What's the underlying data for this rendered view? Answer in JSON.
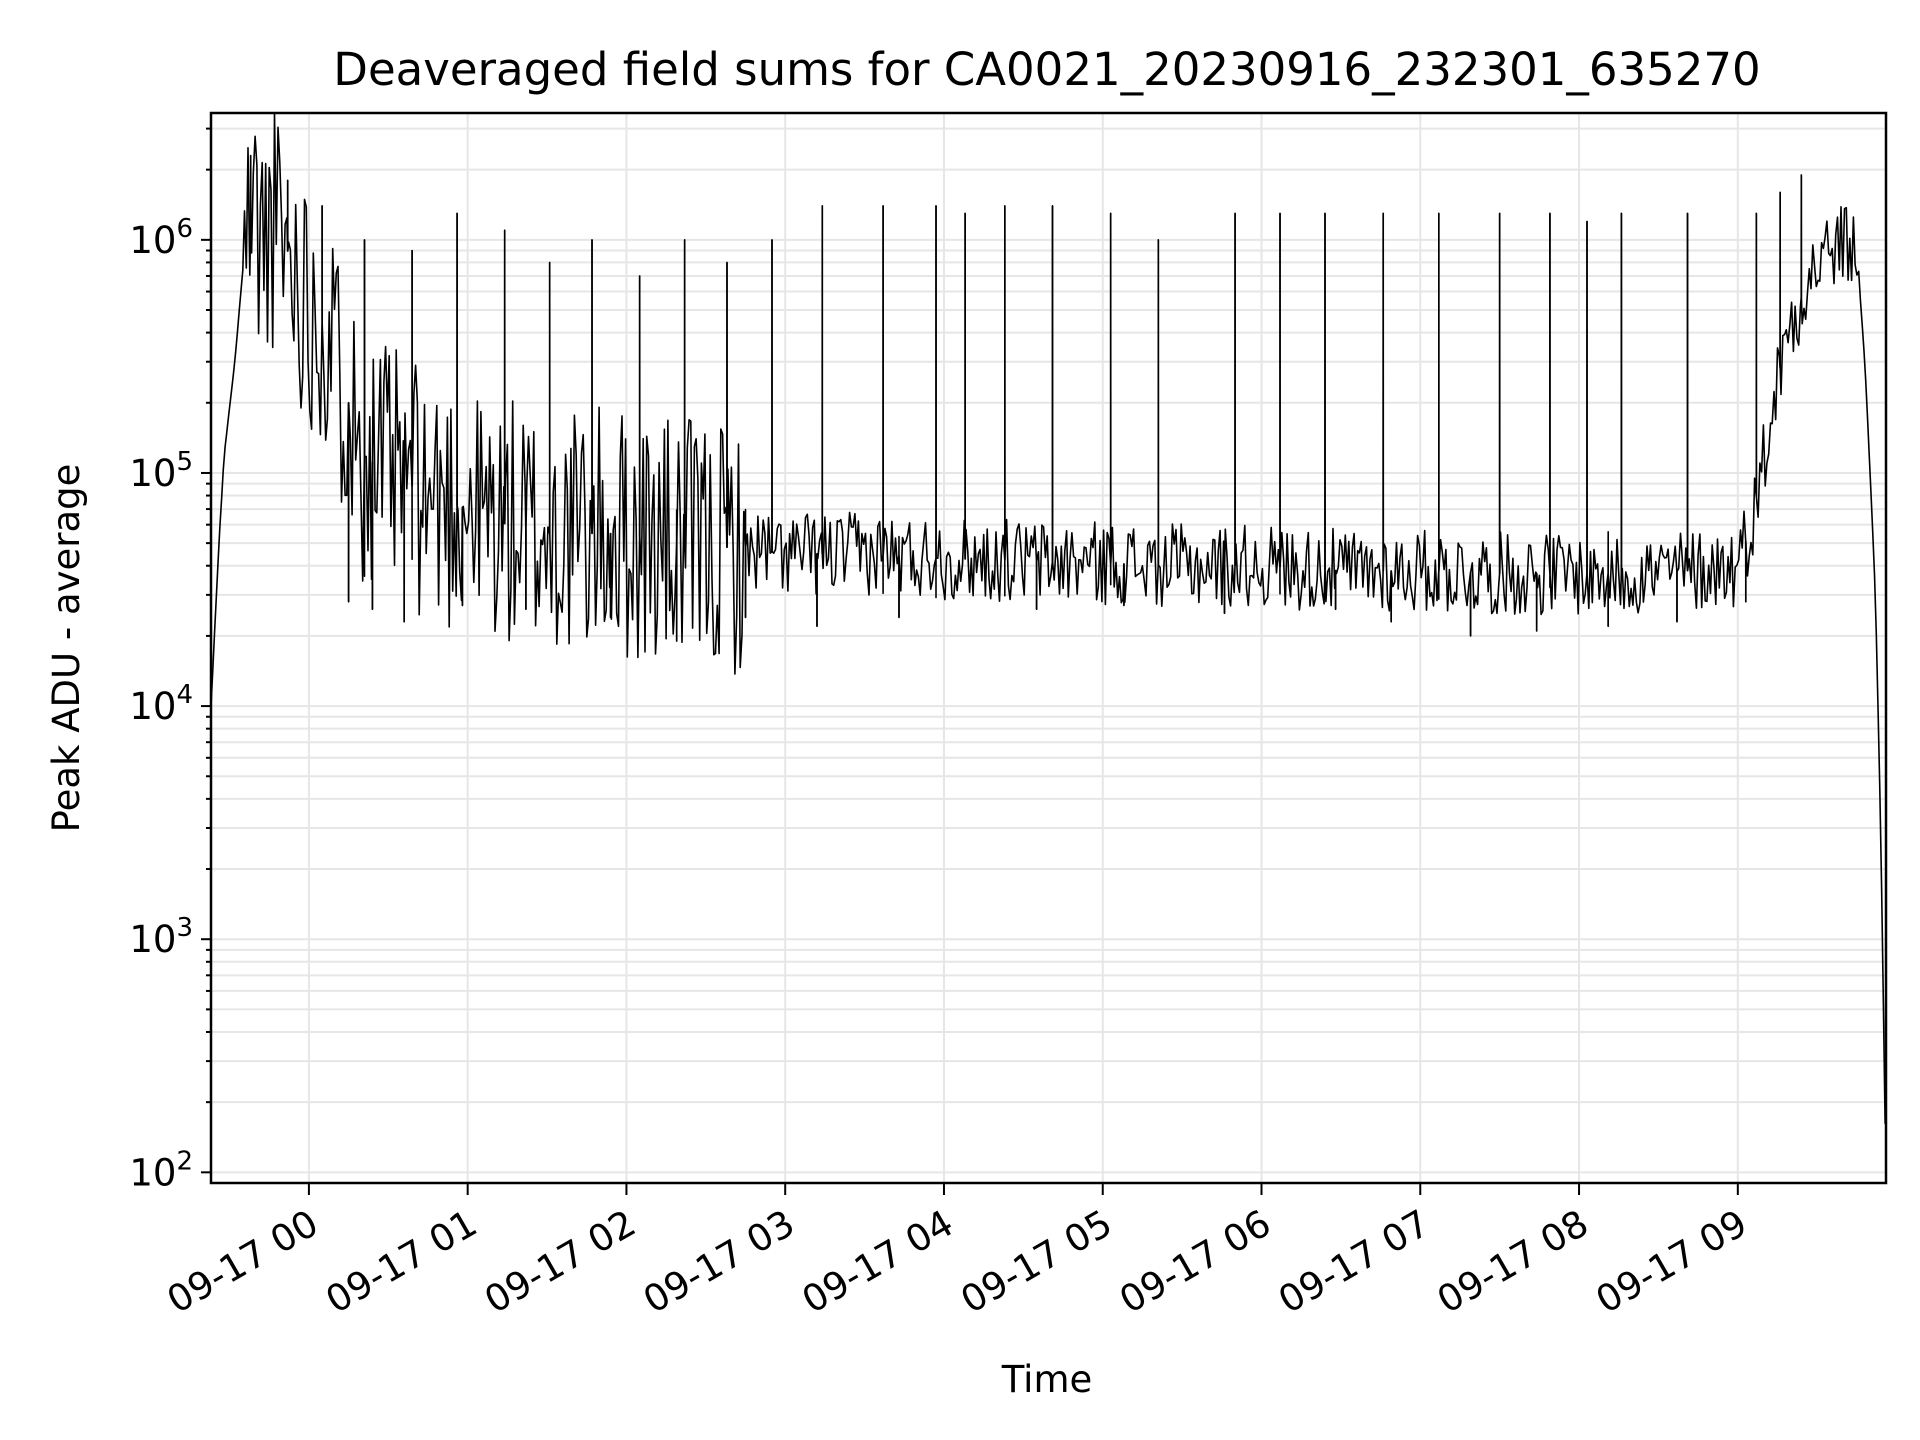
{
  "chart_data": {
    "type": "line",
    "title": "Deaveraged field sums for CA0021_20230916_232301_635270",
    "xlabel": "Time",
    "ylabel": "Peak ADU - average",
    "y_scale": "log",
    "ylim": [
      90,
      3500000
    ],
    "xlim": [
      "2023-09-16 23:23",
      "2023-09-17 09:56"
    ],
    "x_ticks": [
      "09-17 00",
      "09-17 01",
      "09-17 02",
      "09-17 03",
      "09-17 04",
      "09-17 05",
      "09-17 06",
      "09-17 07",
      "09-17 08",
      "09-17 09"
    ],
    "y_ticks": [
      {
        "value": 100,
        "base": "10",
        "exp": "2"
      },
      {
        "value": 1000,
        "base": "10",
        "exp": "3"
      },
      {
        "value": 10000,
        "base": "10",
        "exp": "4"
      },
      {
        "value": 100000,
        "base": "10",
        "exp": "5"
      },
      {
        "value": 1000000,
        "base": "10",
        "exp": "6"
      }
    ],
    "grid": true,
    "line_color": "#000000",
    "grid_color": "#e6e6e6",
    "series": [
      {
        "x": [
          "2023-09-16 23:23",
          "2023-09-16 23:26",
          "2023-09-16 23:28",
          "2023-09-16 23:32",
          "2023-09-16 23:36",
          "2023-09-16 23:40",
          "2023-09-16 23:43",
          "2023-09-16 23:46",
          "2023-09-16 23:50",
          "2023-09-16 23:54",
          "2023-09-16 23:58",
          "2023-09-17 00:02",
          "2023-09-17 00:07",
          "2023-09-17 00:10",
          "2023-09-17 00:15",
          "2023-09-17 00:20",
          "2023-09-17 00:30",
          "2023-09-17 00:45",
          "2023-09-17 01:00",
          "2023-09-17 01:15",
          "2023-09-17 01:30",
          "2023-09-17 01:45",
          "2023-09-17 02:00",
          "2023-09-17 02:15",
          "2023-09-17 02:30",
          "2023-09-17 02:45",
          "2023-09-17 03:00",
          "2023-09-17 03:30",
          "2023-09-17 04:00",
          "2023-09-17 04:30",
          "2023-09-17 05:00",
          "2023-09-17 05:30",
          "2023-09-17 06:00",
          "2023-09-17 06:30",
          "2023-09-17 07:00",
          "2023-09-17 07:30",
          "2023-09-17 08:00",
          "2023-09-17 08:30",
          "2023-09-17 09:00",
          "2023-09-17 09:05",
          "2023-09-17 09:10",
          "2023-09-17 09:15",
          "2023-09-17 09:20",
          "2023-09-17 09:25",
          "2023-09-17 09:30",
          "2023-09-17 09:35",
          "2023-09-17 09:40",
          "2023-09-17 09:45",
          "2023-09-17 09:48",
          "2023-09-17 09:50",
          "2023-09-17 09:52",
          "2023-09-17 09:54",
          "2023-09-17 09:56"
        ],
        "y": [
          10000,
          50000,
          120000,
          300000,
          1000000,
          1300000,
          900000,
          1200000,
          1000000,
          800000,
          600000,
          500000,
          400000,
          300000,
          200000,
          120000,
          100000,
          80000,
          70000,
          60000,
          55000,
          55000,
          55000,
          50000,
          48000,
          48000,
          45000,
          45000,
          43000,
          42000,
          41000,
          40000,
          40000,
          38000,
          38000,
          37000,
          37000,
          37000,
          40000,
          60000,
          120000,
          250000,
          450000,
          600000,
          800000,
          900000,
          950000,
          900000,
          300000,
          100000,
          30000,
          3000,
          90
        ],
        "peaks_x": [
          "2023-09-16 23:38",
          "2023-09-16 23:52",
          "2023-09-17 00:05",
          "2023-09-17 00:21",
          "2023-09-17 00:39",
          "2023-09-17 00:56",
          "2023-09-17 01:14",
          "2023-09-17 01:31",
          "2023-09-17 01:47",
          "2023-09-17 02:05",
          "2023-09-17 02:22",
          "2023-09-17 02:38",
          "2023-09-17 02:55",
          "2023-09-17 03:14",
          "2023-09-17 03:37",
          "2023-09-17 03:57",
          "2023-09-17 04:08",
          "2023-09-17 04:23",
          "2023-09-17 04:41",
          "2023-09-17 05:03",
          "2023-09-17 05:21",
          "2023-09-17 05:50",
          "2023-09-17 06:07",
          "2023-09-17 06:24",
          "2023-09-17 06:46",
          "2023-09-17 07:07",
          "2023-09-17 07:30",
          "2023-09-17 07:49",
          "2023-09-17 08:03",
          "2023-09-17 08:16",
          "2023-09-17 08:41",
          "2023-09-17 09:07",
          "2023-09-17 09:16",
          "2023-09-17 09:24"
        ],
        "peaks_y": [
          2300000,
          1800000,
          1400000,
          1000000,
          900000,
          1300000,
          1100000,
          800000,
          1000000,
          700000,
          1000000,
          800000,
          1000000,
          1400000,
          1400000,
          1400000,
          1300000,
          1400000,
          1400000,
          1300000,
          1000000,
          1300000,
          1300000,
          1300000,
          1300000,
          1300000,
          1300000,
          1300000,
          1200000,
          1300000,
          1300000,
          1300000,
          1600000,
          1900000
        ],
        "dips_x": [
          "2023-09-17 00:15",
          "2023-09-17 00:24",
          "2023-09-17 00:36",
          "2023-09-17 00:58",
          "2023-09-17 01:22",
          "2023-09-17 01:54",
          "2023-09-17 02:19",
          "2023-09-17 02:45",
          "2023-09-17 03:12",
          "2023-09-17 03:43",
          "2023-09-17 04:35",
          "2023-09-17 05:08",
          "2023-09-17 05:46",
          "2023-09-17 06:28",
          "2023-09-17 06:49",
          "2023-09-17 07:19",
          "2023-09-17 07:44",
          "2023-09-17 08:11",
          "2023-09-17 08:37",
          "2023-09-17 09:03"
        ],
        "dips_y": [
          28000,
          26000,
          23000,
          27000,
          26000,
          24000,
          19000,
          24000,
          22000,
          24000,
          26000,
          27000,
          25000,
          26000,
          23000,
          20000,
          21000,
          22000,
          23000,
          28000
        ]
      }
    ]
  }
}
